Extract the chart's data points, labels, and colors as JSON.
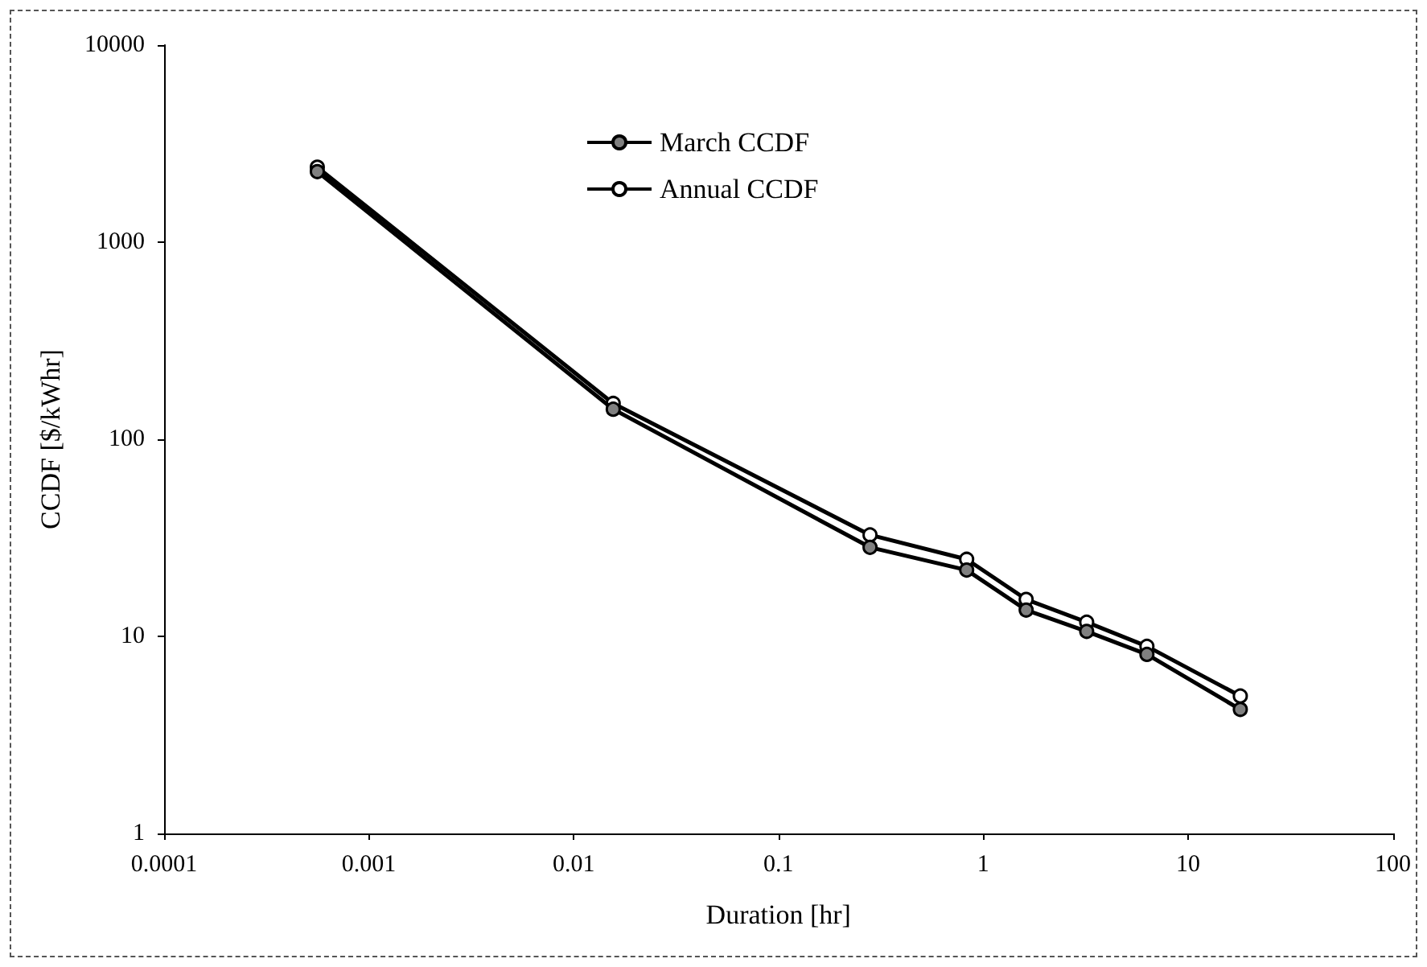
{
  "chart_data": {
    "type": "line",
    "xlabel": "Duration [hr]",
    "ylabel": "CCDF [$/kWhr]",
    "x": [
      0.00056,
      0.0156,
      0.28,
      0.83,
      1.62,
      3.2,
      6.3,
      18
    ],
    "series": [
      {
        "name": "March CCDF",
        "color": "#808080",
        "values": [
          2280,
          142,
          28.3,
          21.7,
          13.6,
          10.6,
          8.1,
          4.26
        ]
      },
      {
        "name": "Annual CCDF",
        "color": "#ffffff",
        "values": [
          2400,
          152,
          32.7,
          24.6,
          15.4,
          11.8,
          8.9,
          4.98
        ]
      }
    ],
    "log": "xy",
    "xlim": [
      0.0001,
      100
    ],
    "xticks": [
      0.0001,
      0.001,
      0.01,
      0.1,
      1,
      10,
      100
    ],
    "ylim": [
      1,
      10000
    ],
    "yticks": [
      1,
      10,
      100,
      1000,
      10000
    ],
    "grid": false,
    "legend": "top",
    "marker": "circle",
    "line_style": "solid"
  }
}
